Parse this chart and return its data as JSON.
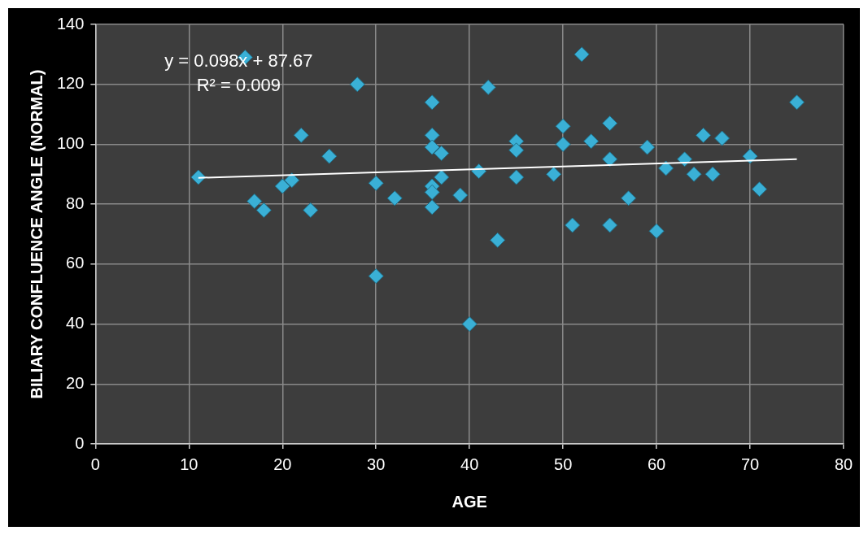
{
  "chart_data": {
    "type": "scatter",
    "xlabel": "AGE",
    "ylabel": "BILIARY CONFLUENCE ANGLE (NORMAL)",
    "xlim": [
      0,
      80
    ],
    "xticks": [
      0,
      10,
      20,
      30,
      40,
      50,
      60,
      70,
      80
    ],
    "ylim": [
      0,
      140
    ],
    "yticks": [
      0,
      20,
      40,
      60,
      80,
      100,
      120,
      140
    ],
    "grid": true,
    "legend": false,
    "annotations": [
      "y = 0.098x + 87.67",
      "R² = 0.009"
    ],
    "series": [
      {
        "marker": "diamond",
        "color": "#3ab0d6",
        "x": [
          11,
          16,
          17,
          18,
          20,
          21,
          22,
          23,
          25,
          28,
          30,
          30,
          32,
          36,
          36,
          36,
          36,
          36,
          36,
          37,
          37,
          39,
          40,
          41,
          42,
          43,
          45,
          45,
          45,
          49,
          50,
          50,
          51,
          52,
          53,
          55,
          55,
          55,
          57,
          59,
          60,
          61,
          63,
          64,
          65,
          66,
          67,
          70,
          71,
          75
        ],
        "values": [
          89,
          129,
          81,
          78,
          86,
          88,
          103,
          78,
          96,
          120,
          87,
          56,
          82,
          114,
          103,
          99,
          86,
          84,
          79,
          97,
          89,
          83,
          40,
          91,
          119,
          68,
          101,
          98,
          89,
          90,
          106,
          100,
          73,
          130,
          101,
          107,
          95,
          73,
          82,
          99,
          71,
          92,
          95,
          90,
          103,
          90,
          102,
          96,
          85,
          114
        ]
      },
      {
        "type": "line",
        "color": "#ffffff",
        "x": [
          11,
          75
        ],
        "values": [
          88.8,
          95
        ]
      }
    ]
  }
}
